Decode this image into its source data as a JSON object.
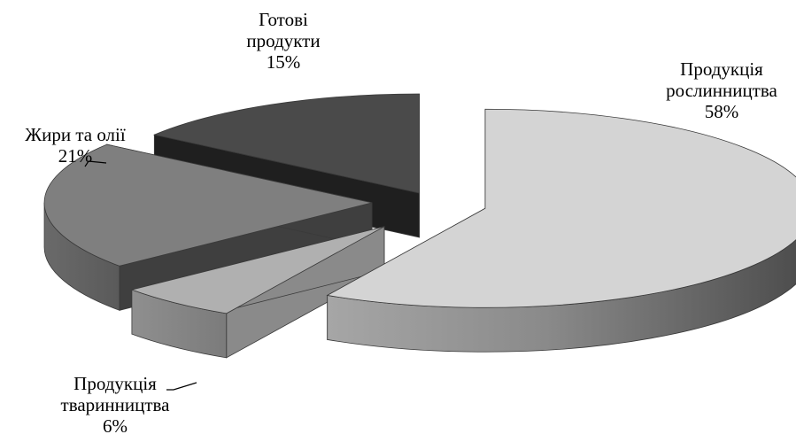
{
  "chart_data": {
    "type": "pie",
    "title": "",
    "slices": [
      {
        "label_lines": [
          "Продукція",
          "рослинництва"
        ],
        "value": 58,
        "value_label": "58%",
        "color": "#d4d4d4"
      },
      {
        "label_lines": [
          "Продукція",
          "тваринництва"
        ],
        "value": 6,
        "value_label": "6%",
        "color": "#b0b0b0"
      },
      {
        "label_lines": [
          "Жири та олії"
        ],
        "value": 21,
        "value_label": "21%",
        "color": "#7f7f7f"
      },
      {
        "label_lines": [
          "Готові",
          "продукти"
        ],
        "value": 15,
        "value_label": "15%",
        "color": "#4a4a4a"
      }
    ],
    "style": "3d exploded pie",
    "legend": "none"
  }
}
